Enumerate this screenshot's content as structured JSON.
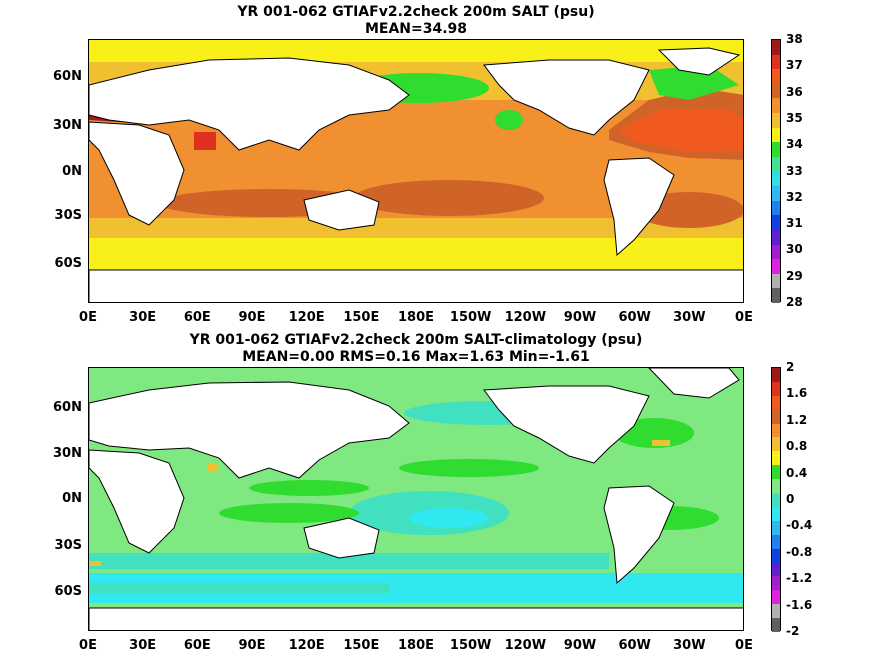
{
  "panels": [
    {
      "title_line1": "YR 001-062 GTIAFv2.2check 200m SALT (psu)",
      "title_line2": "MEAN=34.98",
      "lat_labels": [
        "60N",
        "30N",
        "0N",
        "30S",
        "60S"
      ],
      "lon_labels": [
        "0E",
        "30E",
        "60E",
        "90E",
        "120E",
        "150E",
        "180E",
        "150W",
        "120W",
        "90W",
        "60W",
        "30W",
        "0E"
      ],
      "colorbar": {
        "labels": [
          "38",
          "37",
          "36",
          "35",
          "34",
          "33",
          "32",
          "31",
          "30",
          "29",
          "28"
        ],
        "colors": [
          "#a01a1a",
          "#e03020",
          "#f05a1e",
          "#d06428",
          "#f09030",
          "#f0c030",
          "#f8f018",
          "#30dc30",
          "#40e098",
          "#30e0e0",
          "#30b8f0",
          "#2080f0",
          "#1040e0",
          "#6020d0",
          "#a020d0",
          "#e020e0",
          "#b0b0b0",
          "#606060"
        ]
      },
      "field_colors": {
        "high_salinity": "#f05a1e",
        "subtropical": "#d06428",
        "tropical": "#f09030",
        "mid": "#f0c030",
        "fresh": "#f8f018",
        "low": "#30dc30"
      }
    },
    {
      "title_line1": "YR 001-062 GTIAFv2.2check 200m SALT-climatology (psu)",
      "title_line2": "MEAN=0.00   RMS=0.16   Max=1.63   Min=-1.61",
      "lat_labels": [
        "60N",
        "30N",
        "0N",
        "30S",
        "60S"
      ],
      "lon_labels": [
        "0E",
        "30E",
        "60E",
        "90E",
        "120E",
        "150E",
        "180E",
        "150W",
        "120W",
        "90W",
        "60W",
        "30W",
        "0E"
      ],
      "colorbar": {
        "labels": [
          "2",
          "1.6",
          "1.2",
          "0.8",
          "0.4",
          "0",
          "-0.4",
          "-0.8",
          "-1.2",
          "-1.6",
          "-2"
        ],
        "colors": [
          "#a01a1a",
          "#e03020",
          "#f05a1e",
          "#d06428",
          "#f09030",
          "#f0c030",
          "#f8f018",
          "#30dc30",
          "#80e880",
          "#40e0c0",
          "#30e8f0",
          "#30b8f0",
          "#2080f0",
          "#1040e0",
          "#6020d0",
          "#a020d0",
          "#e020e0",
          "#b0b0b0",
          "#606060"
        ]
      },
      "field_colors": {
        "near_zero": "#80e880",
        "slightly_positive": "#30dc30",
        "slightly_negative": "#40e0c0",
        "negative": "#30e8f0",
        "positive": "#f0c030"
      }
    }
  ]
}
